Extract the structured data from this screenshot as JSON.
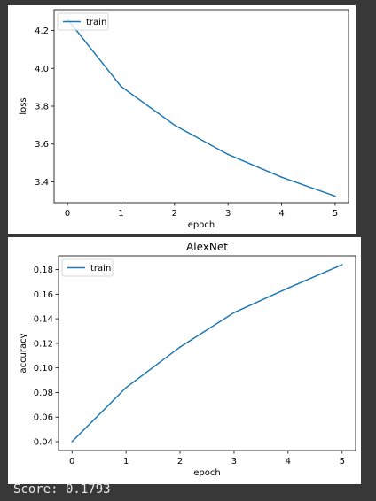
{
  "chart_data": [
    {
      "type": "line",
      "title": "",
      "xlabel": "epoch",
      "ylabel": "loss",
      "x": [
        0,
        1,
        2,
        3,
        4,
        5
      ],
      "xticks": [
        0,
        1,
        2,
        3,
        4,
        5
      ],
      "yticks": [
        3.4,
        3.6,
        3.8,
        4.0,
        4.2
      ],
      "xlim": [
        -0.25,
        5.25
      ],
      "ylim": [
        3.29,
        4.31
      ],
      "grid": false,
      "legend": "upper left",
      "series": [
        {
          "name": "train",
          "color": "#1f77b4",
          "values": [
            4.26,
            3.905,
            3.7,
            3.545,
            3.425,
            3.325
          ]
        }
      ]
    },
    {
      "type": "line",
      "title": "AlexNet",
      "xlabel": "epoch",
      "ylabel": "accuracy",
      "x": [
        0,
        1,
        2,
        3,
        4,
        5
      ],
      "xticks": [
        0,
        1,
        2,
        3,
        4,
        5
      ],
      "yticks": [
        0.04,
        0.06,
        0.08,
        0.1,
        0.12,
        0.14,
        0.16,
        0.18
      ],
      "xlim": [
        -0.25,
        5.25
      ],
      "ylim": [
        0.0328,
        0.1912
      ],
      "grid": false,
      "legend": "upper left",
      "series": [
        {
          "name": "train",
          "color": "#1f77b4",
          "values": [
            0.04,
            0.084,
            0.117,
            0.145,
            0.165,
            0.184
          ]
        }
      ]
    }
  ],
  "footer": {
    "score_text": "Score: 0.1793"
  }
}
